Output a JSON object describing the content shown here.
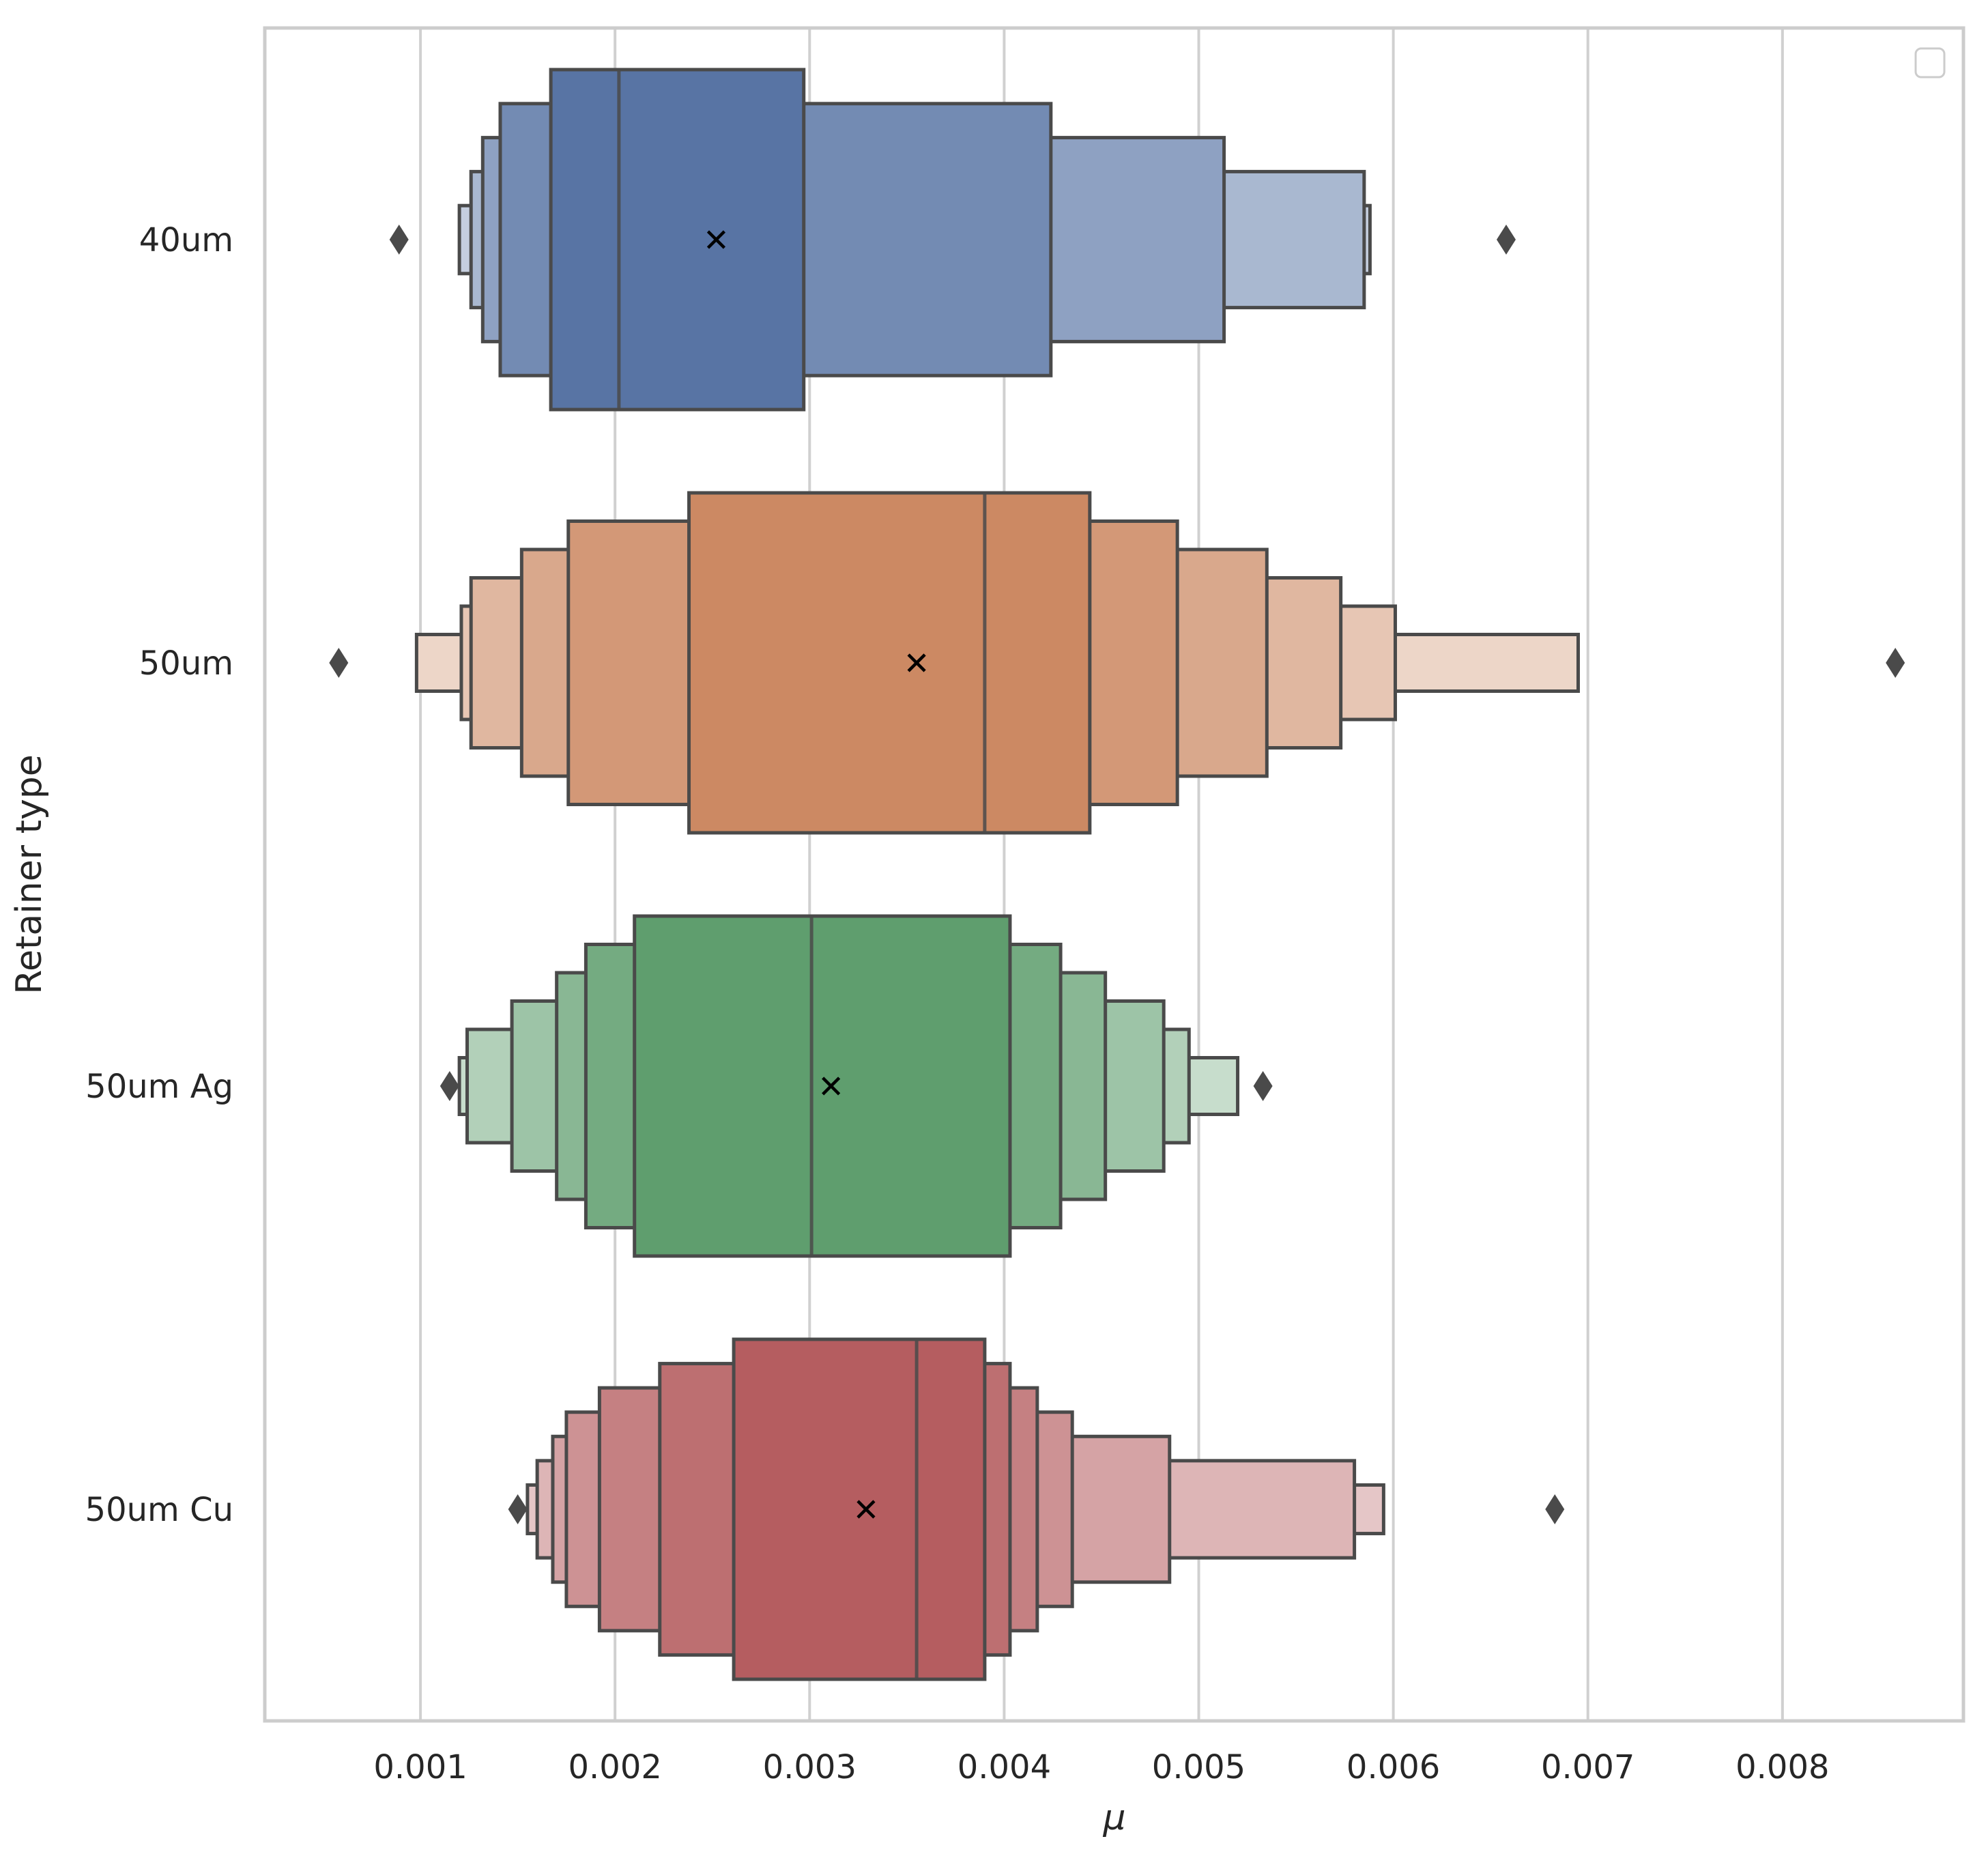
{
  "chart_data": {
    "type": "boxen",
    "orientation": "horizontal",
    "title": "",
    "xlabel": "μ",
    "ylabel": "Retainer type",
    "xlim": [
      0.0002,
      0.00893
    ],
    "xticks": [
      0.001,
      0.002,
      0.003,
      0.004,
      0.005,
      0.006,
      0.007,
      0.008
    ],
    "xtick_labels": [
      "0.001",
      "0.002",
      "0.003",
      "0.004",
      "0.005",
      "0.006",
      "0.007",
      "0.008"
    ],
    "grid": "vertical",
    "legend": {
      "position": "top-right",
      "entries": []
    },
    "categories": [
      "40um",
      "50um",
      "50um Ag",
      "50um Cu"
    ],
    "series": [
      {
        "name": "40um",
        "color": "#5874a4",
        "median": 0.00202,
        "mean": 0.00252,
        "levels": [
          [
            0.00167,
            0.00297
          ],
          [
            0.00141,
            0.00424
          ],
          [
            0.00132,
            0.00513
          ],
          [
            0.00126,
            0.00585
          ],
          [
            0.0012,
            0.00588
          ]
        ],
        "outliers": [
          0.00089,
          0.00658
        ]
      },
      {
        "name": "50um",
        "color": "#cc8963",
        "median": 0.0039,
        "mean": 0.00355,
        "levels": [
          [
            0.00238,
            0.00444
          ],
          [
            0.00176,
            0.00489
          ],
          [
            0.00152,
            0.00535
          ],
          [
            0.00126,
            0.00573
          ],
          [
            0.00121,
            0.00601
          ],
          [
            0.00098,
            0.00695
          ]
        ],
        "outliers": [
          0.00058,
          0.00858
        ]
      },
      {
        "name": "50um Ag",
        "color": "#5f9e6e",
        "median": 0.00301,
        "mean": 0.00311,
        "levels": [
          [
            0.0021,
            0.00403
          ],
          [
            0.00185,
            0.00429
          ],
          [
            0.0017,
            0.00452
          ],
          [
            0.00147,
            0.00482
          ],
          [
            0.00124,
            0.00495
          ],
          [
            0.0012,
            0.0052
          ]
        ],
        "outliers": [
          0.00115,
          0.00533
        ]
      },
      {
        "name": "50um Cu",
        "color": "#b55d60",
        "median": 0.00355,
        "mean": 0.00329,
        "levels": [
          [
            0.00261,
            0.0039
          ],
          [
            0.00223,
            0.00403
          ],
          [
            0.00192,
            0.00417
          ],
          [
            0.00175,
            0.00435
          ],
          [
            0.00168,
            0.00485
          ],
          [
            0.0016,
            0.0058
          ],
          [
            0.00155,
            0.00595
          ]
        ],
        "outliers": [
          0.0015,
          0.00683
        ]
      }
    ]
  }
}
